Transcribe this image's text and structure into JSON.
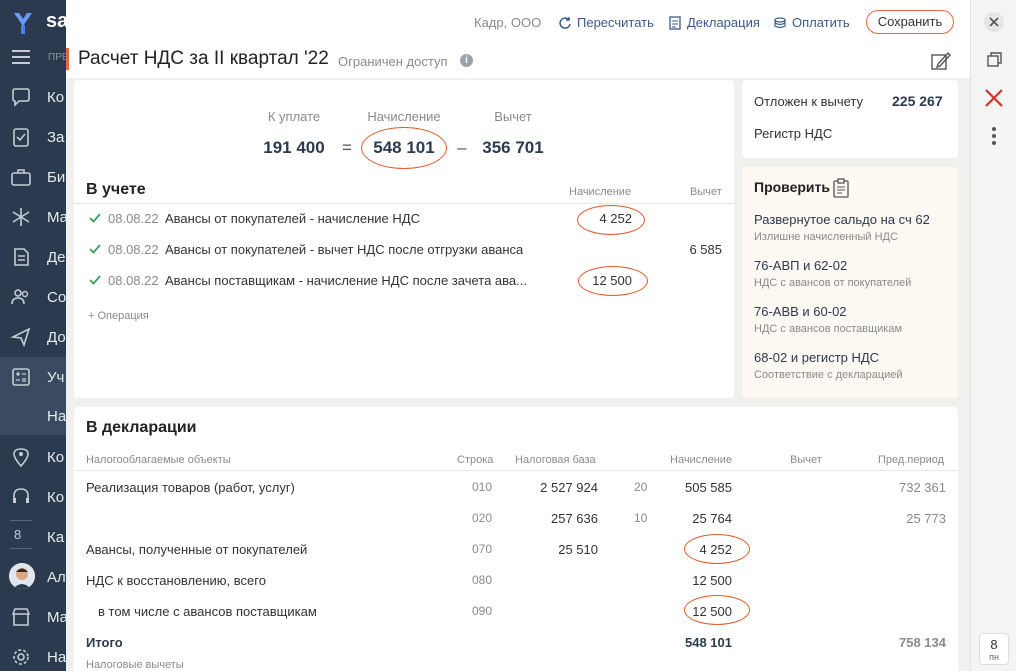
{
  "sidebar": {
    "brand": "sa",
    "sub_label": "ПРЕ",
    "items": [
      {
        "icon": "chat-icon",
        "label": "Ко"
      },
      {
        "icon": "tasks-icon",
        "label": "За"
      },
      {
        "icon": "briefcase-icon",
        "label": "Би"
      },
      {
        "icon": "snowflake-icon",
        "label": "Ма"
      },
      {
        "icon": "document-icon",
        "label": "Де"
      },
      {
        "icon": "people-icon",
        "label": "Со"
      },
      {
        "icon": "send-icon",
        "label": "До"
      },
      {
        "icon": "calculator-icon",
        "label": "Уч"
      },
      {
        "icon": "",
        "label": "На"
      },
      {
        "icon": "location-icon",
        "label": "Ко"
      },
      {
        "icon": "headset-icon",
        "label": "Ко"
      },
      {
        "icon": "",
        "label": "Ка"
      },
      {
        "icon": "",
        "label": "Ал"
      },
      {
        "icon": "store-icon",
        "label": "Ма"
      },
      {
        "icon": "gear-icon",
        "label": "На"
      }
    ],
    "counter": "8"
  },
  "header": {
    "org": "Кадр, ООО",
    "recalc": "Пересчитать",
    "declaration": "Декларация",
    "pay": "Оплатить",
    "save": "Сохранить"
  },
  "title": {
    "text": "Расчет НДС за II квартал '22",
    "access": "Ограничен доступ",
    "info": "i"
  },
  "summary": {
    "pay_label": "К уплате",
    "pay_value": "191 400",
    "eq": "=",
    "accrual_label": "Начисление",
    "accrual_value": "548 101",
    "minus": "–",
    "deduction_label": "Вычет",
    "deduction_value": "356 701"
  },
  "accounting": {
    "title": "В учете",
    "col_accrual": "Начисление",
    "col_deduction": "Вычет",
    "rows": [
      {
        "date": "08.08.22",
        "text": "Авансы от покупателей - начисление НДС",
        "accrual": "4 252",
        "deduction": ""
      },
      {
        "date": "08.08.22",
        "text": "Авансы от покупателей - вычет НДС после отгрузки аванса",
        "accrual": "",
        "deduction": "6 585"
      },
      {
        "date": "08.08.22",
        "text": "Авансы поставщикам - начисление НДС после зачета ава...",
        "accrual": "12 500",
        "deduction": ""
      }
    ],
    "add_label": "+ Операция"
  },
  "deferred": {
    "label": "Отложен к вычету",
    "value": "225 267",
    "register": "Регистр НДС"
  },
  "checks": {
    "title": "Проверить",
    "items": [
      {
        "title": "Развернутое сальдо на сч 62",
        "sub": "Излишне начисленный НДС"
      },
      {
        "title": "76-АВП и 62-02",
        "sub": "НДС с авансов от покупателей"
      },
      {
        "title": "76-АВВ и 60-02",
        "sub": "НДС с авансов поставщикам"
      },
      {
        "title": "68-02 и регистр НДС",
        "sub": "Соответствие с декларацией"
      }
    ]
  },
  "declaration": {
    "title": "В декларации",
    "headers": {
      "objects": "Налогооблагаемые объекты",
      "line": "Строка",
      "base": "Налоговая база",
      "accrual": "Начисление",
      "deduction": "Вычет",
      "prev": "Пред.период"
    },
    "rows": [
      {
        "name": "Реализация товаров (работ, услуг)",
        "line": "010",
        "base": "2 527 924",
        "rate": "20",
        "accrual": "505 585",
        "prev": "732 361"
      },
      {
        "name": "",
        "line": "020",
        "base": "257 636",
        "rate": "10",
        "accrual": "25 764",
        "prev": "25 773"
      },
      {
        "name": "Авансы, полученные от покупателей",
        "line": "070",
        "base": "25 510",
        "rate": "",
        "accrual": "4 252",
        "prev": ""
      },
      {
        "name": "НДС к восстановлению, всего",
        "line": "080",
        "base": "",
        "rate": "",
        "accrual": "12 500",
        "prev": ""
      },
      {
        "name": "в том числе с авансов поставщикам",
        "line": "090",
        "base": "",
        "rate": "",
        "accrual": "12 500",
        "prev": ""
      }
    ],
    "total": {
      "name": "Итого",
      "accrual": "548 101",
      "prev": "758 134"
    },
    "next_section": "Налоговые вычеты"
  },
  "right_panel": {
    "day": "8",
    "weekday": "пн"
  },
  "colors": {
    "accent": "#e8663a",
    "sidebar_bg": "#2b3a4e",
    "link": "#3a5a8c",
    "ok_green": "#3aa35a",
    "annotation": "#e05a2a"
  }
}
